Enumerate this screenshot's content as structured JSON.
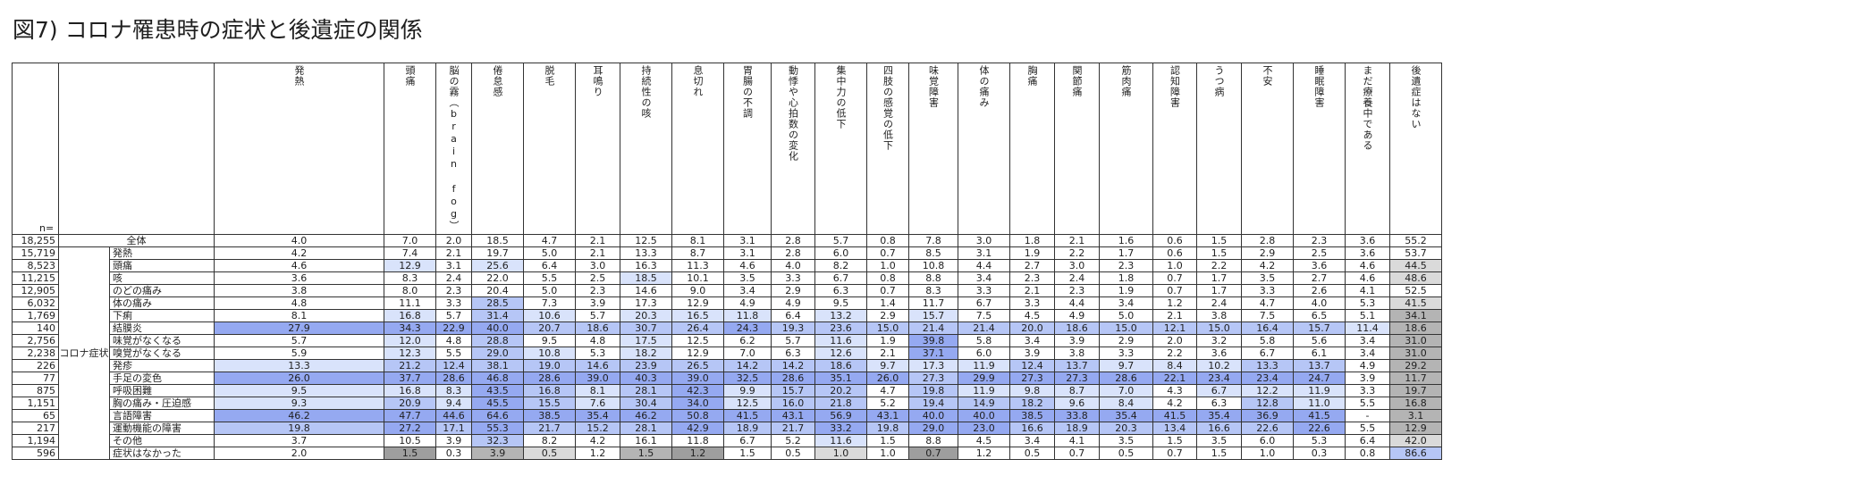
{
  "title": "図7) コロナ罹患時の症状と後遺症の関係",
  "chart_data": {
    "type": "table",
    "title": "図7) コロナ罹患時の症状と後遺症の関係",
    "n_label": "n=",
    "group_label": "コロナ症状",
    "columns": [
      "発熱",
      "頭痛",
      "脳の霧（brain fog）",
      "倦怠感",
      "脱毛",
      "耳鳴り",
      "持続性の咳",
      "息切れ",
      "胃腸の不調",
      "動悸や心拍数の変化",
      "集中力の低下",
      "四肢の感覚の低下",
      "味覚障害",
      "体の痛み",
      "胸痛",
      "関節痛",
      "筋肉痛",
      "認知障害",
      "うつ病",
      "不安",
      "睡眠障害",
      "まだ療養中である",
      "後遺症はない"
    ],
    "total": {
      "n": "18,255",
      "label": "全体",
      "values": [
        "4.0",
        "7.0",
        "2.0",
        "18.5",
        "4.7",
        "2.1",
        "12.5",
        "8.1",
        "3.1",
        "2.8",
        "5.7",
        "0.8",
        "7.8",
        "3.0",
        "1.8",
        "2.1",
        "1.6",
        "0.6",
        "1.5",
        "2.8",
        "2.3",
        "3.6",
        "55.2"
      ]
    },
    "rows": [
      {
        "n": "15,719",
        "label": "発熱",
        "values": [
          "4.2",
          "7.4",
          "2.1",
          "19.7",
          "5.0",
          "2.1",
          "13.3",
          "8.7",
          "3.1",
          "2.8",
          "6.0",
          "0.7",
          "8.5",
          "3.1",
          "1.9",
          "2.2",
          "1.7",
          "0.6",
          "1.5",
          "2.9",
          "2.5",
          "3.6",
          "53.7"
        ]
      },
      {
        "n": "8,523",
        "label": "頭痛",
        "values": [
          "4.6",
          "12.9",
          "3.1",
          "25.6",
          "6.4",
          "3.0",
          "16.3",
          "11.3",
          "4.6",
          "4.0",
          "8.2",
          "1.0",
          "10.8",
          "4.4",
          "2.7",
          "3.0",
          "2.3",
          "1.0",
          "2.2",
          "4.2",
          "3.6",
          "4.6",
          "44.5"
        ]
      },
      {
        "n": "11,215",
        "label": "咳",
        "values": [
          "3.6",
          "8.3",
          "2.4",
          "22.0",
          "5.5",
          "2.5",
          "18.5",
          "10.1",
          "3.5",
          "3.3",
          "6.7",
          "0.8",
          "8.8",
          "3.4",
          "2.3",
          "2.4",
          "1.8",
          "0.7",
          "1.7",
          "3.5",
          "2.7",
          "4.6",
          "48.6"
        ]
      },
      {
        "n": "12,905",
        "label": "のどの痛み",
        "values": [
          "3.8",
          "8.0",
          "2.3",
          "20.4",
          "5.0",
          "2.3",
          "14.6",
          "9.0",
          "3.4",
          "2.9",
          "6.3",
          "0.7",
          "8.3",
          "3.3",
          "2.1",
          "2.3",
          "1.9",
          "0.7",
          "1.7",
          "3.3",
          "2.6",
          "4.1",
          "52.5"
        ]
      },
      {
        "n": "6,032",
        "label": "体の痛み",
        "values": [
          "4.8",
          "11.1",
          "3.3",
          "28.5",
          "7.3",
          "3.9",
          "17.3",
          "12.9",
          "4.9",
          "4.9",
          "9.5",
          "1.4",
          "11.7",
          "6.7",
          "3.3",
          "4.4",
          "3.4",
          "1.2",
          "2.4",
          "4.7",
          "4.0",
          "5.3",
          "41.5"
        ]
      },
      {
        "n": "1,769",
        "label": "下痢",
        "values": [
          "8.1",
          "16.8",
          "5.7",
          "31.4",
          "10.6",
          "5.7",
          "20.3",
          "16.5",
          "11.8",
          "6.4",
          "13.2",
          "2.9",
          "15.7",
          "7.5",
          "4.5",
          "4.9",
          "5.0",
          "2.1",
          "3.8",
          "7.5",
          "6.5",
          "5.1",
          "34.1"
        ]
      },
      {
        "n": "140",
        "label": "結膜炎",
        "values": [
          "27.9",
          "34.3",
          "22.9",
          "40.0",
          "20.7",
          "18.6",
          "30.7",
          "26.4",
          "24.3",
          "19.3",
          "23.6",
          "15.0",
          "21.4",
          "21.4",
          "20.0",
          "18.6",
          "15.0",
          "12.1",
          "15.0",
          "16.4",
          "15.7",
          "11.4",
          "18.6"
        ]
      },
      {
        "n": "2,756",
        "label": "味覚がなくなる",
        "values": [
          "5.7",
          "12.0",
          "4.8",
          "28.8",
          "9.5",
          "4.8",
          "17.5",
          "12.5",
          "6.2",
          "5.7",
          "11.6",
          "1.9",
          "39.8",
          "5.8",
          "3.4",
          "3.9",
          "2.9",
          "2.0",
          "3.2",
          "5.8",
          "5.6",
          "3.4",
          "31.0"
        ]
      },
      {
        "n": "2,238",
        "label": "嗅覚がなくなる",
        "values": [
          "5.9",
          "12.3",
          "5.5",
          "29.0",
          "10.8",
          "5.3",
          "18.2",
          "12.9",
          "7.0",
          "6.3",
          "12.6",
          "2.1",
          "37.1",
          "6.0",
          "3.9",
          "3.8",
          "3.3",
          "2.2",
          "3.6",
          "6.7",
          "6.1",
          "3.4",
          "31.0"
        ]
      },
      {
        "n": "226",
        "label": "発疹",
        "values": [
          "13.3",
          "21.2",
          "12.4",
          "38.1",
          "19.0",
          "14.6",
          "23.9",
          "26.5",
          "14.2",
          "14.2",
          "18.6",
          "9.7",
          "17.3",
          "11.9",
          "12.4",
          "13.7",
          "9.7",
          "8.4",
          "10.2",
          "13.3",
          "13.7",
          "4.9",
          "29.2"
        ]
      },
      {
        "n": "77",
        "label": "手足の変色",
        "values": [
          "26.0",
          "37.7",
          "28.6",
          "46.8",
          "28.6",
          "39.0",
          "40.3",
          "39.0",
          "32.5",
          "28.6",
          "35.1",
          "26.0",
          "27.3",
          "29.9",
          "27.3",
          "27.3",
          "28.6",
          "22.1",
          "23.4",
          "23.4",
          "24.7",
          "3.9",
          "11.7"
        ]
      },
      {
        "n": "875",
        "label": "呼吸困難",
        "values": [
          "9.5",
          "16.8",
          "8.3",
          "43.5",
          "16.8",
          "8.1",
          "28.1",
          "42.3",
          "9.9",
          "15.7",
          "20.2",
          "4.7",
          "19.8",
          "11.9",
          "9.8",
          "8.7",
          "7.0",
          "4.3",
          "6.7",
          "12.2",
          "11.9",
          "3.3",
          "19.7"
        ]
      },
      {
        "n": "1,151",
        "label": "胸の痛み・圧迫感",
        "values": [
          "9.3",
          "20.9",
          "9.4",
          "45.5",
          "15.5",
          "7.6",
          "30.4",
          "34.0",
          "12.5",
          "16.0",
          "21.8",
          "5.2",
          "19.4",
          "14.9",
          "18.2",
          "9.6",
          "8.4",
          "4.2",
          "6.3",
          "12.8",
          "11.0",
          "5.5",
          "16.8"
        ]
      },
      {
        "n": "65",
        "label": "言語障害",
        "values": [
          "46.2",
          "47.7",
          "44.6",
          "64.6",
          "38.5",
          "35.4",
          "46.2",
          "50.8",
          "41.5",
          "43.1",
          "56.9",
          "43.1",
          "40.0",
          "40.0",
          "38.5",
          "33.8",
          "35.4",
          "41.5",
          "35.4",
          "36.9",
          "41.5",
          "-",
          "3.1"
        ]
      },
      {
        "n": "217",
        "label": "運動機能の障害",
        "values": [
          "19.8",
          "27.2",
          "17.1",
          "55.3",
          "21.7",
          "15.2",
          "28.1",
          "42.9",
          "18.9",
          "21.7",
          "33.2",
          "19.8",
          "29.0",
          "23.0",
          "16.6",
          "18.9",
          "20.3",
          "13.4",
          "16.6",
          "22.6",
          "22.6",
          "5.5",
          "12.9"
        ]
      },
      {
        "n": "1,194",
        "label": "その他",
        "values": [
          "3.7",
          "10.5",
          "3.9",
          "32.3",
          "8.2",
          "4.2",
          "16.1",
          "11.8",
          "6.7",
          "5.2",
          "11.6",
          "1.5",
          "8.8",
          "4.5",
          "3.4",
          "4.1",
          "3.5",
          "1.5",
          "3.5",
          "6.0",
          "5.3",
          "6.4",
          "42.0"
        ]
      },
      {
        "n": "596",
        "label": "症状はなかった",
        "values": [
          "2.0",
          "1.5",
          "0.3",
          "3.9",
          "0.5",
          "1.2",
          "1.5",
          "1.2",
          "1.5",
          "0.5",
          "1.0",
          "1.0",
          "0.7",
          "1.2",
          "0.5",
          "0.7",
          "0.5",
          "0.7",
          "1.5",
          "1.0",
          "0.3",
          "0.8",
          "86.6"
        ]
      }
    ],
    "highlight_colors": {
      "blue_light": "#d9e3fb",
      "blue_mid": "#b6c6f6",
      "blue_dark": "#95a9f1",
      "gray_light": "#dadada",
      "gray_mid": "#b4b4b4",
      "gray_dark": "#9e9e9e"
    }
  }
}
